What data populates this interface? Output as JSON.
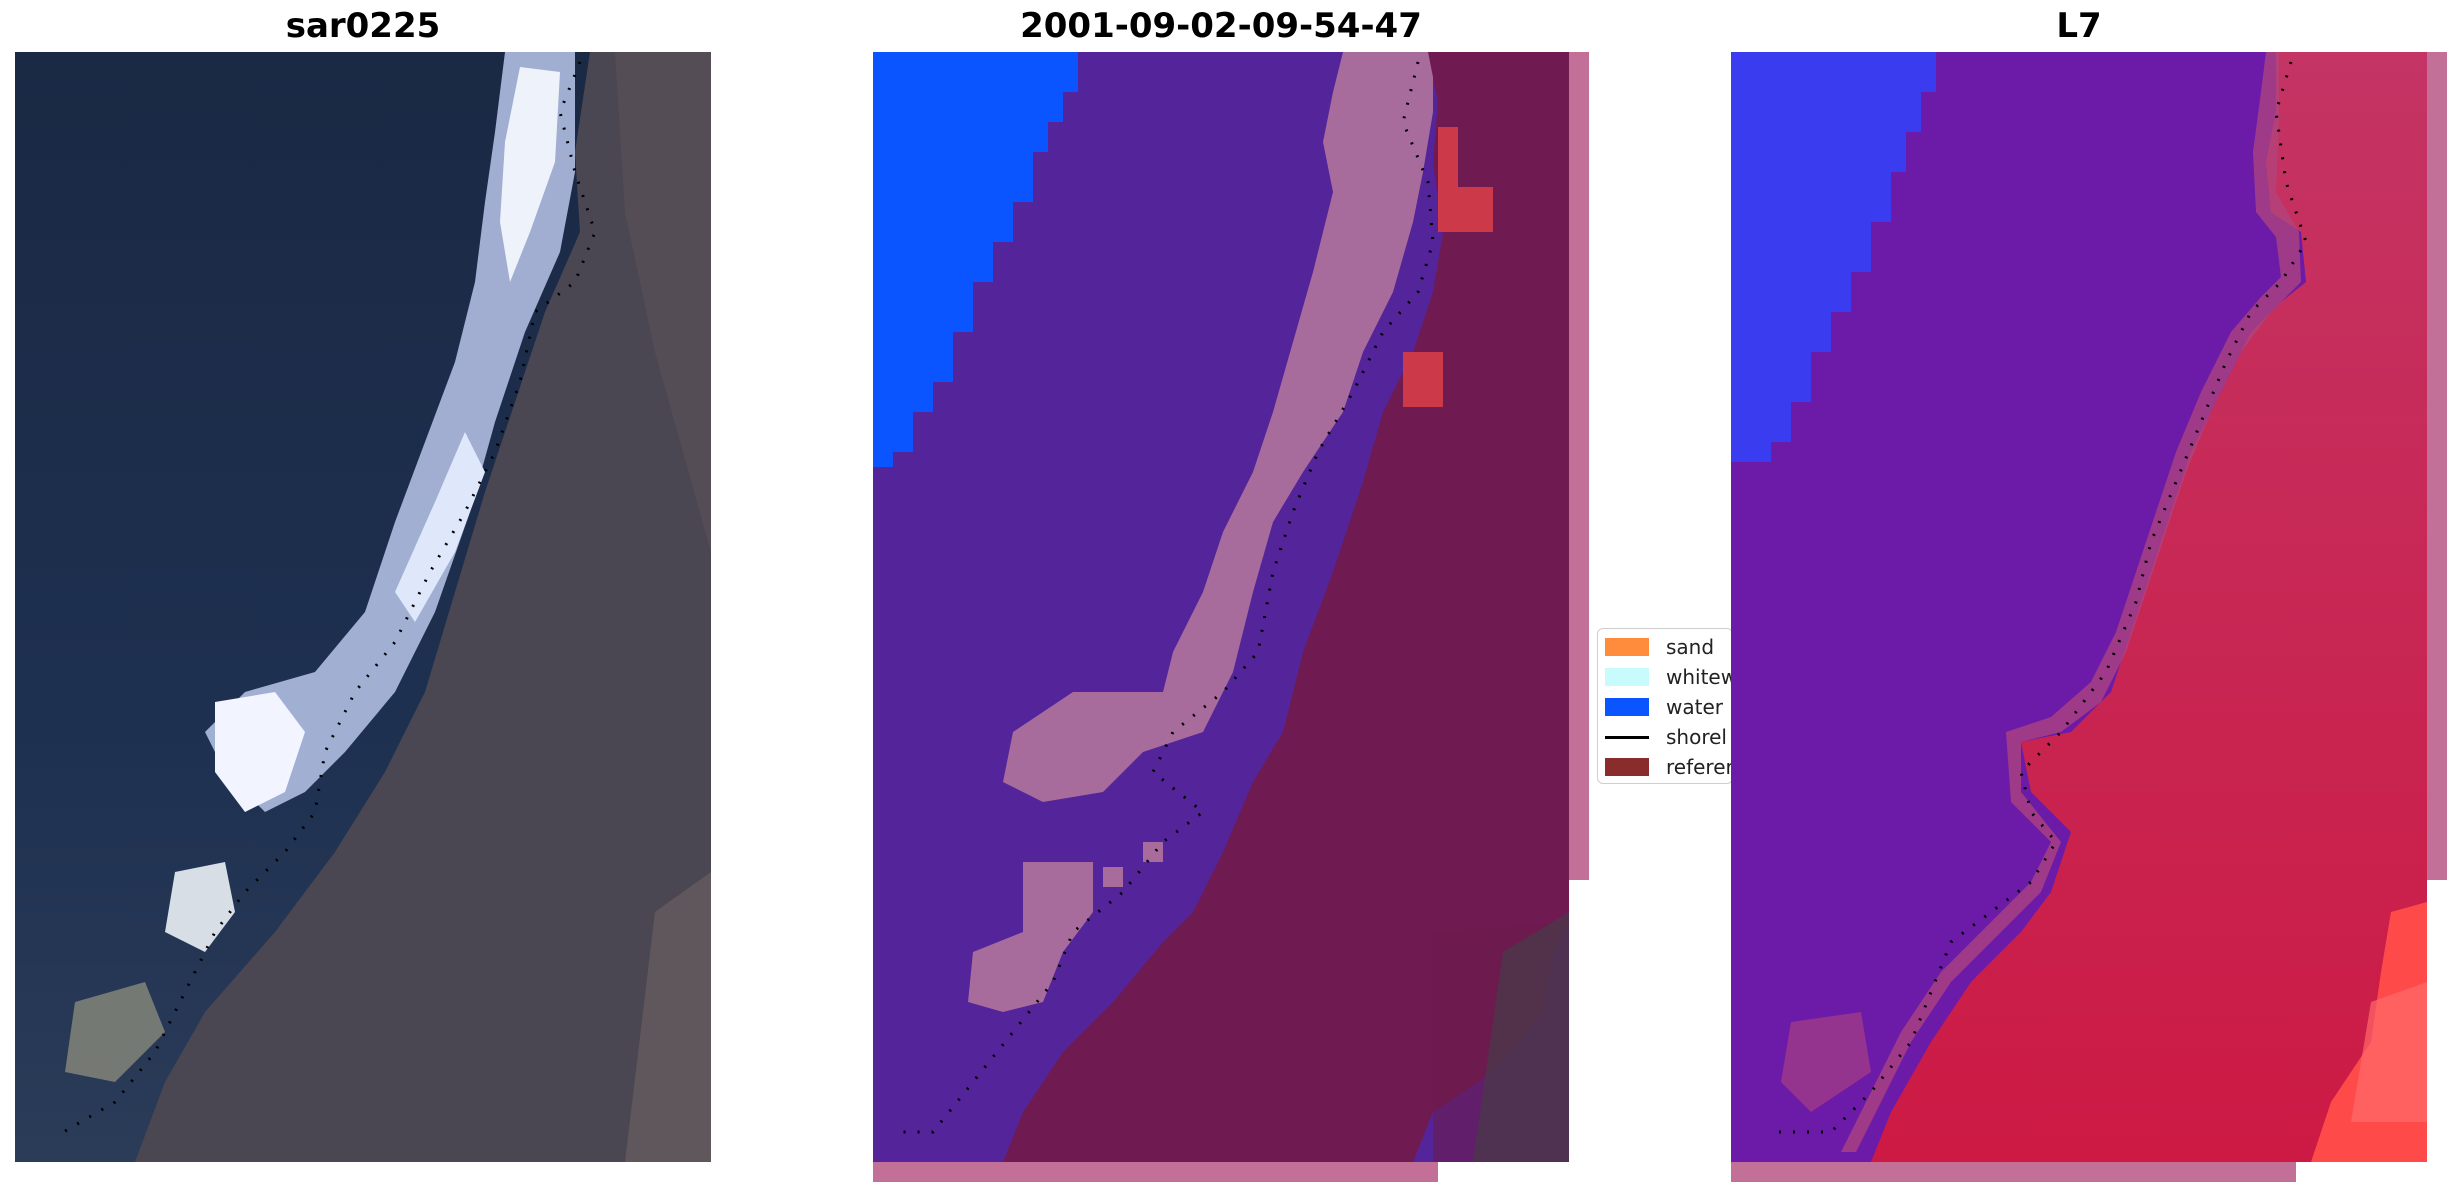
{
  "panels": {
    "left": {
      "title": "sar0225"
    },
    "middle": {
      "title": "2001-09-02-09-54-47"
    },
    "right": {
      "title": "L7"
    }
  },
  "legend": {
    "items": [
      {
        "label": "sand",
        "color": "#ff8c3c"
      },
      {
        "label": "whitew",
        "color": "#c8fcfc"
      },
      {
        "label": "water",
        "color": "#0a55ff"
      },
      {
        "label": "shorel",
        "color": "#000000"
      },
      {
        "label": "referer",
        "color": "#8b2c2c"
      }
    ]
  },
  "colors": {
    "ocean_dark": "#1c2b46",
    "land_rgb": "#4a4750",
    "surf_white": "#d8e0f6",
    "class_purple": "#54249a",
    "class_pink": "#a86c9c",
    "class_maroon": "#701a52",
    "class_blue": "#0a55ff",
    "class_red": "#cc3a4a",
    "ndwi_blue": "#3a3cf0",
    "ndwi_purple": "#6c1aa8",
    "ndwi_red": "#c4204e",
    "ndwi_bright_red": "#ff4a4a",
    "edge_pink": "#c27098"
  }
}
